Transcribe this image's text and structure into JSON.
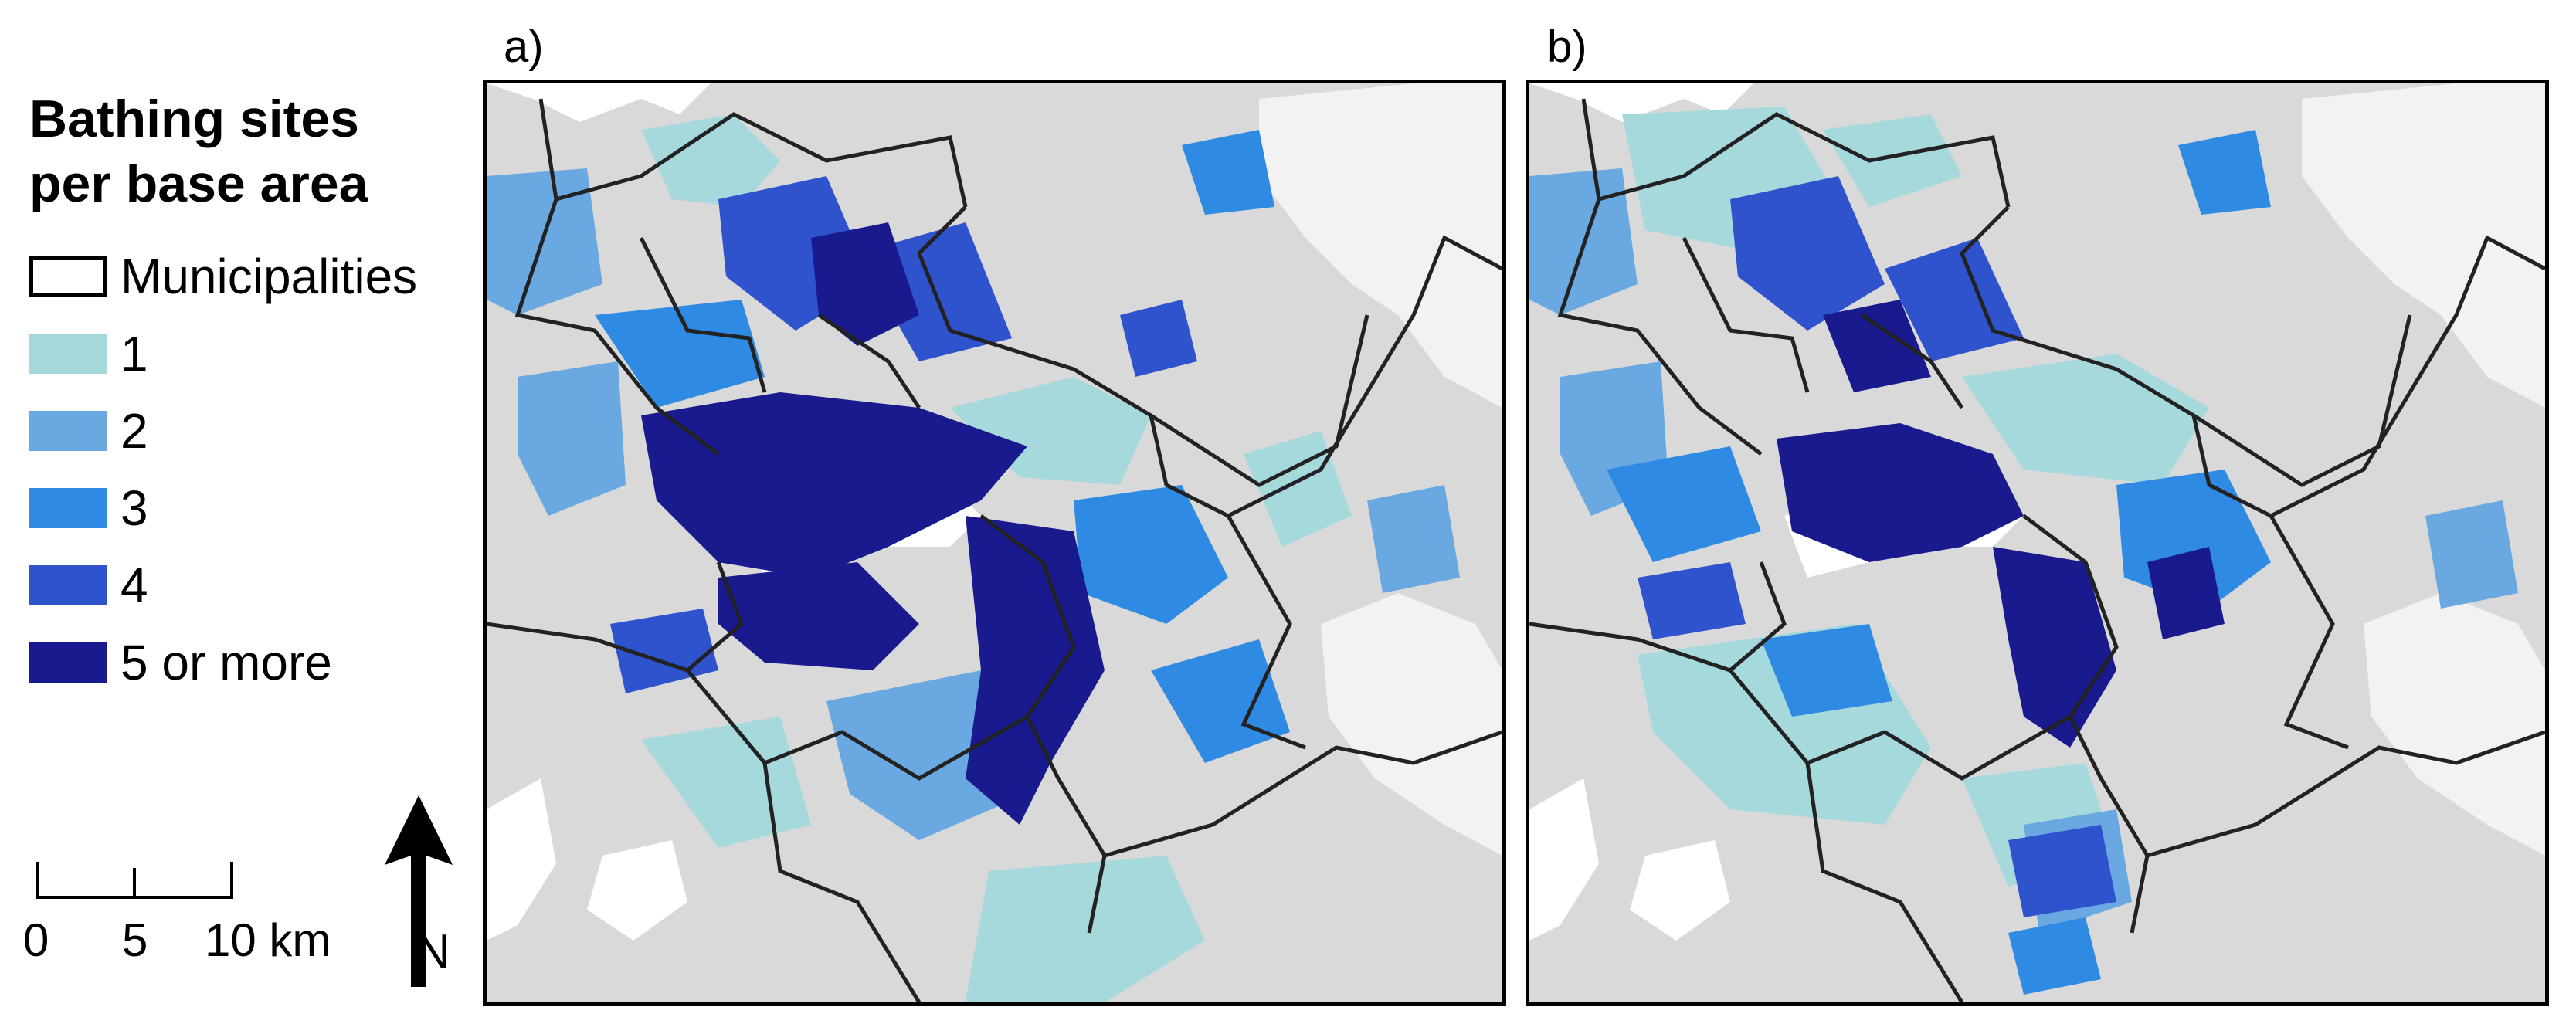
{
  "legend": {
    "title_line1": "Bathing sites",
    "title_line2": "per base area",
    "items": [
      {
        "label": "Municipalities",
        "color": "#ffffff",
        "type": "outline"
      },
      {
        "label": "1",
        "color": "#a6d9dc"
      },
      {
        "label": "2",
        "color": "#69a8e0"
      },
      {
        "label": "3",
        "color": "#2f8ae3"
      },
      {
        "label": "4",
        "color": "#2f53cc"
      },
      {
        "label": "5 or more",
        "color": "#1a1a8f"
      }
    ]
  },
  "scale": {
    "labels": [
      "0",
      "5",
      "10 km"
    ]
  },
  "north": {
    "letter": "N"
  },
  "panels": [
    {
      "label": "a)"
    },
    {
      "label": "b)"
    }
  ],
  "colors": {
    "land": "#d9d9d9",
    "water": "#ffffff",
    "boundary": "#222222"
  }
}
